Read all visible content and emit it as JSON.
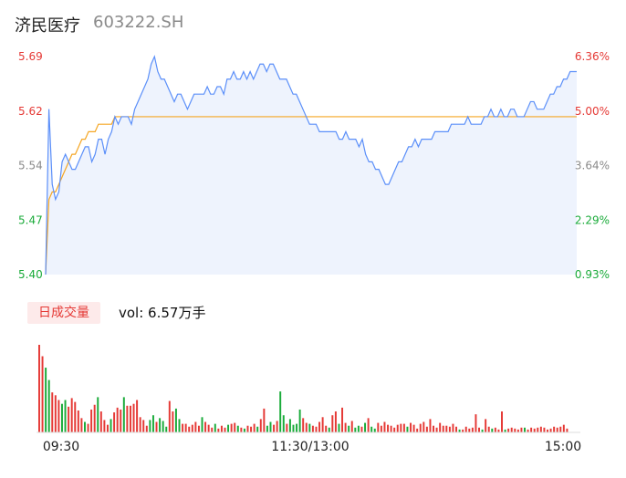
{
  "header": {
    "name": "济民医疗",
    "code": "603222.SH"
  },
  "volume": {
    "tab_label": "日成交量",
    "vol_label": "vol: 6.57万手"
  },
  "colors": {
    "price": "#5b8ff9",
    "avg": "#f5a623",
    "up": "#e53935",
    "down": "#1aab3a",
    "neutral": "#8a8a8a",
    "area": "#eef3fd"
  },
  "chart_data": {
    "type": "line",
    "y_left_ticks": [
      "5.69",
      "5.62",
      "5.54",
      "5.47",
      "5.40"
    ],
    "y_right_ticks": [
      "6.36%",
      "5.00%",
      "3.64%",
      "2.29%",
      "0.93%"
    ],
    "ylim": [
      5.4,
      5.69
    ],
    "x_ticks": [
      "09:30",
      "11:30/13:00",
      "15:00"
    ],
    "series": [
      {
        "values": [
          5.4,
          5.62,
          5.52,
          5.5,
          5.51,
          5.55,
          5.56,
          5.55,
          5.54,
          5.54,
          5.55,
          5.56,
          5.57,
          5.57,
          5.55,
          5.56,
          5.58,
          5.58,
          5.56,
          5.58,
          5.59,
          5.61,
          5.6,
          5.61,
          5.61,
          5.61,
          5.6,
          5.62,
          5.63,
          5.64,
          5.65,
          5.66,
          5.68,
          5.69,
          5.67,
          5.66,
          5.66,
          5.65,
          5.64,
          5.63,
          5.64,
          5.64,
          5.63,
          5.62,
          5.63,
          5.64,
          5.64,
          5.64,
          5.64,
          5.65,
          5.64,
          5.64,
          5.65,
          5.65,
          5.64,
          5.66,
          5.66,
          5.67,
          5.66,
          5.66,
          5.67,
          5.66,
          5.67,
          5.66,
          5.67,
          5.68,
          5.68,
          5.67,
          5.68,
          5.68,
          5.67,
          5.66,
          5.66,
          5.66,
          5.65,
          5.64,
          5.64,
          5.63,
          5.62,
          5.61,
          5.6,
          5.6,
          5.6,
          5.59,
          5.59,
          5.59,
          5.59,
          5.59,
          5.59,
          5.58,
          5.58,
          5.59,
          5.58,
          5.58,
          5.58,
          5.57,
          5.58,
          5.56,
          5.55,
          5.55,
          5.54,
          5.54,
          5.53,
          5.52,
          5.52,
          5.53,
          5.54,
          5.55,
          5.55,
          5.56,
          5.57,
          5.57,
          5.58,
          5.57,
          5.58,
          5.58,
          5.58,
          5.58,
          5.59,
          5.59,
          5.59,
          5.59,
          5.59,
          5.6,
          5.6,
          5.6,
          5.6,
          5.6,
          5.61,
          5.6,
          5.6,
          5.6,
          5.6,
          5.61,
          5.61,
          5.62,
          5.61,
          5.61,
          5.62,
          5.61,
          5.61,
          5.62,
          5.62,
          5.61,
          5.61,
          5.61,
          5.62,
          5.63,
          5.63,
          5.62,
          5.62,
          5.62,
          5.63,
          5.64,
          5.64,
          5.65,
          5.65,
          5.66,
          5.66,
          5.67,
          5.67,
          5.67
        ]
      },
      {
        "values": [
          5.4,
          5.5,
          5.51,
          5.51,
          5.52,
          5.53,
          5.54,
          5.55,
          5.56,
          5.56,
          5.57,
          5.58,
          5.58,
          5.59,
          5.59,
          5.59,
          5.6,
          5.6,
          5.6,
          5.6,
          5.6,
          5.61,
          5.61,
          5.61,
          5.61,
          5.61,
          5.61,
          5.61,
          5.61,
          5.61,
          5.61,
          5.61,
          5.61,
          5.61,
          5.61,
          5.61,
          5.61,
          5.61,
          5.61,
          5.61,
          5.61,
          5.61,
          5.61,
          5.61,
          5.61,
          5.61,
          5.61,
          5.61,
          5.61,
          5.61,
          5.61,
          5.61,
          5.61,
          5.61,
          5.61,
          5.61,
          5.61,
          5.61,
          5.61,
          5.61,
          5.61,
          5.61,
          5.61,
          5.61,
          5.61,
          5.61,
          5.61,
          5.61,
          5.61,
          5.61,
          5.61,
          5.61,
          5.61,
          5.61,
          5.61,
          5.61,
          5.61,
          5.61,
          5.61,
          5.61,
          5.61,
          5.61,
          5.61,
          5.61,
          5.61,
          5.61,
          5.61,
          5.61,
          5.61,
          5.61,
          5.61,
          5.61,
          5.61,
          5.61,
          5.61,
          5.61,
          5.61,
          5.61,
          5.61,
          5.61,
          5.61,
          5.61,
          5.61,
          5.61,
          5.61,
          5.61,
          5.61,
          5.61,
          5.61,
          5.61,
          5.61,
          5.61,
          5.61,
          5.61,
          5.61,
          5.61,
          5.61,
          5.61,
          5.61,
          5.61,
          5.61,
          5.61,
          5.61,
          5.61,
          5.61,
          5.61,
          5.61,
          5.61,
          5.61,
          5.61,
          5.61,
          5.61,
          5.61,
          5.61,
          5.61,
          5.61,
          5.61,
          5.61,
          5.61,
          5.61,
          5.61,
          5.61,
          5.61,
          5.61,
          5.61,
          5.61,
          5.61,
          5.61,
          5.61,
          5.61,
          5.61,
          5.61,
          5.61,
          5.61,
          5.61,
          5.61,
          5.61,
          5.61,
          5.61,
          5.61,
          5.61,
          5.61
        ]
      }
    ],
    "volumes": [
      9.2,
      8,
      6.8,
      5.5,
      4.2,
      3.9,
      3.4,
      3,
      3.4,
      2.7,
      3.6,
      3.2,
      2.3,
      1.5,
      1.1,
      0.9,
      2.4,
      2.9,
      3.7,
      2.2,
      1.3,
      0.8,
      1.4,
      2.1,
      2.6,
      2.4,
      3.7,
      2.8,
      2.8,
      3,
      3.4,
      1.6,
      1.3,
      0.7,
      1.3,
      1.8,
      1.1,
      1.5,
      1.2,
      0.6,
      3.3,
      2.2,
      2.5,
      1.4,
      0.9,
      0.9,
      0.6,
      0.8,
      1.1,
      0.7,
      1.6,
      1.1,
      0.8,
      0.5,
      0.9,
      0.4,
      0.7,
      0.5,
      0.8,
      0.9,
      1,
      0.7,
      0.5,
      0.4,
      0.7,
      0.6,
      0.9,
      0.6,
      1.4,
      2.5,
      0.7,
      1.1,
      0.8,
      1.2,
      4.3,
      1.8,
      0.9,
      1.4,
      0.8,
      0.9,
      2.4,
      1.5,
      1,
      0.9,
      0.7,
      0.6,
      1.1,
      1.6,
      0.7,
      0.5,
      1.8,
      2.2,
      0.9,
      2.6,
      1,
      0.7,
      1.2,
      0.5,
      0.7,
      0.6,
      1,
      1.5,
      0.6,
      0.4,
      1,
      0.7,
      1.1,
      0.8,
      0.7,
      0.5,
      0.8,
      0.9,
      0.9,
      0.6,
      1,
      0.8,
      0.4,
      0.9,
      1.1,
      0.6,
      1.4,
      0.7,
      0.5,
      1,
      0.7,
      0.7,
      0.6,
      0.9,
      0.6,
      0.3,
      0.3,
      0.6,
      0.4,
      0.5,
      1.9,
      0.5,
      0.3,
      1.4,
      0.6,
      0.4,
      0.5,
      0.3,
      2.2,
      0.3,
      0.4,
      0.5,
      0.4,
      0.3,
      0.5,
      0.5,
      0.3,
      0.5,
      0.4,
      0.5,
      0.6,
      0.5,
      0.3,
      0.4,
      0.6,
      0.5,
      0.6,
      0.8,
      0.4
    ]
  }
}
